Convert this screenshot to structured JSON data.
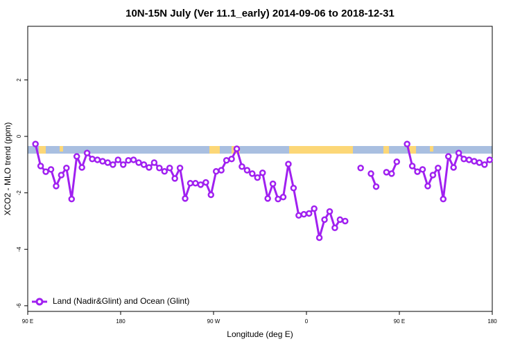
{
  "chart_data": {
    "type": "line",
    "title": "10N-15N July (Ver 11.1_early)   2014-09-06 to 2018-12-31",
    "x_label": "Longitude (deg E)",
    "y_label": "XCO2 - MLO trend (ppm)",
    "x": [
      97.5,
      102.5,
      107.5,
      112.5,
      117.5,
      122.5,
      127.5,
      132.5,
      137.5,
      142.5,
      147.5,
      152.5,
      157.5,
      162.5,
      167.5,
      172.5,
      177.5,
      182.5,
      187.5,
      192.5,
      197.5,
      202.5,
      207.5,
      212.5,
      217.5,
      222.5,
      227.5,
      232.5,
      237.5,
      242.5,
      247.5,
      252.5,
      257.5,
      262.5,
      267.5,
      272.5,
      277.5,
      282.5,
      287.5,
      292.5,
      297.5,
      302.5,
      307.5,
      312.5,
      317.5,
      322.5,
      327.5,
      332.5,
      337.5,
      342.5,
      347.5,
      352.5,
      357.5,
      362.5,
      367.5,
      372.5,
      377.5,
      382.5,
      387.5,
      392.5,
      397.5,
      402.5,
      407.5,
      412.5,
      417.5,
      422.5,
      427.5,
      432.5,
      437.5,
      442.5,
      447.5,
      452.5,
      457.5,
      462.5,
      467.5,
      472.5,
      477.5,
      482.5,
      487.5,
      492.5,
      497.5,
      502.5,
      507.5,
      512.5,
      517.5,
      522.5,
      527.5,
      532.5,
      537.5
    ],
    "series": [
      {
        "name": "Land (Nadir&Glint) and Ocean (Glint)",
        "color": "#a020f0",
        "values": [
          -0.27,
          -1.05,
          -1.25,
          -1.17,
          -1.76,
          -1.37,
          -1.12,
          -2.22,
          -0.71,
          -1.1,
          -0.59,
          -0.8,
          -0.83,
          -0.88,
          -0.93,
          -1.0,
          -0.83,
          -1.0,
          -0.85,
          -0.83,
          -0.93,
          -1.0,
          -1.1,
          -0.93,
          -1.12,
          -1.24,
          -1.12,
          -1.49,
          -1.12,
          -2.2,
          -1.66,
          -1.66,
          -1.71,
          -1.63,
          -2.07,
          -1.24,
          -1.2,
          -0.85,
          -0.8,
          -0.44,
          -1.07,
          -1.2,
          -1.32,
          -1.46,
          -1.29,
          -2.2,
          -1.68,
          -2.22,
          -2.15,
          -0.98,
          -1.83,
          -2.8,
          -2.76,
          -2.73,
          -2.56,
          -3.59,
          -2.95,
          -2.66,
          -3.24,
          -2.95,
          -3.0,
          null,
          null,
          -1.12,
          null,
          -1.32,
          -1.78,
          null,
          -1.27,
          -1.32,
          -0.9,
          null,
          -0.27,
          -1.05,
          -1.25,
          -1.17,
          -1.76,
          -1.37,
          -1.12,
          -2.22,
          -0.71,
          -1.1,
          -0.59,
          -0.8,
          -0.83,
          -0.88,
          -0.93,
          -1.0,
          -0.83
        ]
      }
    ],
    "xlim": [
      90,
      540
    ],
    "xticks": [
      {
        "value": 90,
        "label": "90 E"
      },
      180,
      {
        "value": 270,
        "label": "90 W"
      },
      {
        "value": 360,
        "label": "0"
      },
      {
        "value": 450,
        "label": "90 E"
      },
      {
        "value": 540,
        "label": "180"
      }
    ],
    "ylim": [
      -6.2,
      3.9
    ],
    "yticks": [
      -6,
      -4,
      -2,
      0,
      2
    ],
    "legend": "bottom-left"
  }
}
